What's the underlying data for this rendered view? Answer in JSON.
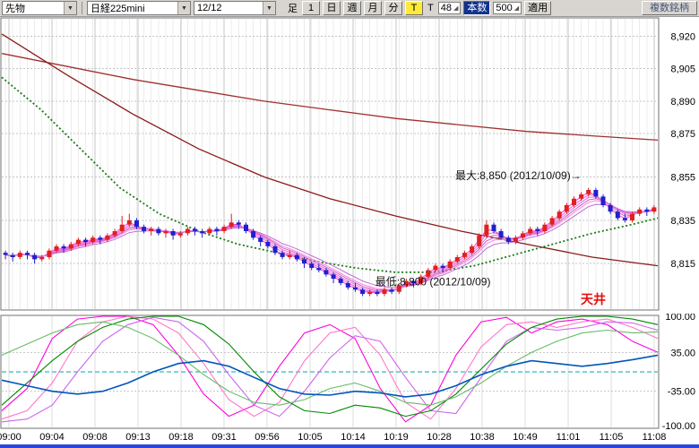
{
  "toolbar": {
    "market_select": "先物",
    "symbol_select": "日経225mini",
    "date_select": "12/12",
    "bar_label": "足",
    "interval_buttons": [
      "1",
      "日",
      "週",
      "月",
      "分"
    ],
    "tick_button": "T",
    "tick_label": "T",
    "tick_count": "48",
    "bars_button": "本数",
    "bars_count": "500",
    "apply_button": "適用",
    "multi_symbol_button": "複数銘柄"
  },
  "colors": {
    "up": "#e02020",
    "down": "#2020cc",
    "grid": "#ececec",
    "tick_grid": "#c6c6c6",
    "price_grid": "#c4c4c4",
    "border": "#707070",
    "bottom_bar": "#2b46e0",
    "ceiling": "#e81010",
    "annotation": "#111111"
  },
  "chart_data": {
    "type": "candlestick",
    "price_axis": {
      "labels": [
        "8,920",
        "8,905",
        "8,890",
        "8,875",
        "8,855",
        "8,835",
        "8,815"
      ],
      "values": [
        8920,
        8905,
        8890,
        8875,
        8855,
        8835,
        8815
      ],
      "min": 8794,
      "max": 8928
    },
    "time_axis": {
      "labels": [
        "09:00",
        "09:04",
        "09:08",
        "09:13",
        "09:18",
        "09:31",
        "09:56",
        "10:05",
        "10:14",
        "10:19",
        "10:28",
        "10:38",
        "10:49",
        "11:01",
        "11:05",
        "11:08"
      ]
    },
    "annotations": {
      "max_label": "最大:8,850 (2012/10/09)→",
      "min_label": "最低:8,800 (2012/10/09)",
      "ceiling_label": "天井"
    },
    "candles": [
      [
        8820,
        8821,
        8817,
        8819
      ],
      [
        8819,
        8820,
        8816,
        8818
      ],
      [
        8818,
        8821,
        8817,
        8820
      ],
      [
        8820,
        8821,
        8817,
        8819
      ],
      [
        8819,
        8820,
        8815,
        8817
      ],
      [
        8817,
        8819,
        8816,
        8818
      ],
      [
        8818,
        8822,
        8817,
        8821
      ],
      [
        8821,
        8824,
        8820,
        8823
      ],
      [
        8823,
        8824,
        8820,
        8822
      ],
      [
        8822,
        8825,
        8821,
        8824
      ],
      [
        8824,
        8827,
        8823,
        8826
      ],
      [
        8826,
        8827,
        8823,
        8825
      ],
      [
        8825,
        8828,
        8824,
        8827
      ],
      [
        8827,
        8828,
        8824,
        8826
      ],
      [
        8826,
        8829,
        8825,
        8828
      ],
      [
        8828,
        8831,
        8827,
        8830
      ],
      [
        8830,
        8837,
        8829,
        8833
      ],
      [
        8833,
        8838,
        8832,
        8835
      ],
      [
        8835,
        8836,
        8831,
        8832
      ],
      [
        8832,
        8833,
        8829,
        8830
      ],
      [
        8830,
        8832,
        8828,
        8831
      ],
      [
        8831,
        8832,
        8828,
        8829
      ],
      [
        8829,
        8831,
        8827,
        8830
      ],
      [
        8830,
        8831,
        8826,
        8828
      ],
      [
        8828,
        8830,
        8827,
        8829
      ],
      [
        8829,
        8832,
        8828,
        8831
      ],
      [
        8831,
        8832,
        8828,
        8830
      ],
      [
        8830,
        8831,
        8827,
        8829
      ],
      [
        8829,
        8832,
        8828,
        8831
      ],
      [
        8831,
        8832,
        8828,
        8830
      ],
      [
        8830,
        8833,
        8829,
        8832
      ],
      [
        8832,
        8838,
        8831,
        8834
      ],
      [
        8834,
        8835,
        8831,
        8833
      ],
      [
        8833,
        8834,
        8829,
        8830
      ],
      [
        8830,
        8831,
        8826,
        8827
      ],
      [
        8827,
        8828,
        8823,
        8825
      ],
      [
        8825,
        8826,
        8822,
        8823
      ],
      [
        8823,
        8824,
        8819,
        8820
      ],
      [
        8820,
        8821,
        8817,
        8818
      ],
      [
        8818,
        8821,
        8817,
        8819
      ],
      [
        8819,
        8820,
        8816,
        8817
      ],
      [
        8817,
        8818,
        8813,
        8815
      ],
      [
        8815,
        8816,
        8812,
        8813
      ],
      [
        8813,
        8815,
        8811,
        8812
      ],
      [
        8812,
        8813,
        8809,
        8810
      ],
      [
        8810,
        8811,
        8806,
        8808
      ],
      [
        8808,
        8809,
        8805,
        8806
      ],
      [
        8806,
        8807,
        8803,
        8804
      ],
      [
        8804,
        8806,
        8802,
        8803
      ],
      [
        8803,
        8804,
        8800,
        8801
      ],
      [
        8801,
        8803,
        8800,
        8802
      ],
      [
        8802,
        8803,
        8800,
        8801
      ],
      [
        8801,
        8804,
        8800,
        8803
      ],
      [
        8803,
        8804,
        8801,
        8802
      ],
      [
        8802,
        8806,
        8801,
        8805
      ],
      [
        8805,
        8808,
        8804,
        8807
      ],
      [
        8807,
        8808,
        8804,
        8806
      ],
      [
        8806,
        8810,
        8805,
        8809
      ],
      [
        8809,
        8813,
        8808,
        8812
      ],
      [
        8812,
        8815,
        8811,
        8814
      ],
      [
        8814,
        8815,
        8811,
        8813
      ],
      [
        8813,
        8817,
        8812,
        8816
      ],
      [
        8816,
        8819,
        8815,
        8818
      ],
      [
        8818,
        8821,
        8817,
        8820
      ],
      [
        8820,
        8824,
        8819,
        8823
      ],
      [
        8823,
        8829,
        8822,
        8828
      ],
      [
        8828,
        8835,
        8827,
        8833
      ],
      [
        8833,
        8834,
        8829,
        8830
      ],
      [
        8830,
        8831,
        8826,
        8827
      ],
      [
        8827,
        8828,
        8824,
        8825
      ],
      [
        8825,
        8828,
        8824,
        8827
      ],
      [
        8827,
        8830,
        8826,
        8829
      ],
      [
        8829,
        8832,
        8828,
        8831
      ],
      [
        8831,
        8832,
        8828,
        8830
      ],
      [
        8830,
        8834,
        8829,
        8833
      ],
      [
        8833,
        8837,
        8832,
        8836
      ],
      [
        8836,
        8840,
        8835,
        8839
      ],
      [
        8839,
        8843,
        8838,
        8842
      ],
      [
        8842,
        8846,
        8841,
        8845
      ],
      [
        8845,
        8848,
        8844,
        8847
      ],
      [
        8847,
        8850,
        8846,
        8849
      ],
      [
        8849,
        8850,
        8845,
        8846
      ],
      [
        8846,
        8847,
        8841,
        8842
      ],
      [
        8842,
        8843,
        8838,
        8839
      ],
      [
        8839,
        8840,
        8835,
        8836
      ],
      [
        8836,
        8838,
        8834,
        8835
      ],
      [
        8835,
        8839,
        8834,
        8838
      ],
      [
        8838,
        8841,
        8837,
        8840
      ],
      [
        8840,
        8841,
        8837,
        8839
      ],
      [
        8839,
        8842,
        8838,
        8841
      ]
    ],
    "overlays": {
      "ma_red_flat": {
        "color": "#a03030",
        "points": [
          [
            0,
            8912
          ],
          [
            0.1,
            8906
          ],
          [
            0.2,
            8900
          ],
          [
            0.3,
            8895
          ],
          [
            0.4,
            8890
          ],
          [
            0.5,
            8886
          ],
          [
            0.6,
            8882
          ],
          [
            0.7,
            8879
          ],
          [
            0.8,
            8876
          ],
          [
            0.9,
            8874
          ],
          [
            1,
            8872
          ]
        ]
      },
      "ma_red_steep": {
        "color": "#8b1a1a",
        "points": [
          [
            0,
            8921
          ],
          [
            0.1,
            8902
          ],
          [
            0.2,
            8884
          ],
          [
            0.3,
            8868
          ],
          [
            0.4,
            8855
          ],
          [
            0.5,
            8845
          ],
          [
            0.6,
            8837
          ],
          [
            0.7,
            8830
          ],
          [
            0.8,
            8824
          ],
          [
            0.9,
            8818
          ],
          [
            1,
            8814
          ]
        ]
      },
      "ma_green_dotted": {
        "color": "#1a7a1a",
        "points": [
          [
            0,
            8901
          ],
          [
            0.06,
            8886
          ],
          [
            0.12,
            8868
          ],
          [
            0.18,
            8850
          ],
          [
            0.24,
            8838
          ],
          [
            0.3,
            8830
          ],
          [
            0.36,
            8824
          ],
          [
            0.42,
            8820
          ],
          [
            0.48,
            8816
          ],
          [
            0.54,
            8813
          ],
          [
            0.6,
            8811
          ],
          [
            0.66,
            8811
          ],
          [
            0.72,
            8814
          ],
          [
            0.78,
            8819
          ],
          [
            0.84,
            8824
          ],
          [
            0.9,
            8829
          ],
          [
            0.96,
            8833
          ],
          [
            1,
            8836
          ]
        ]
      },
      "band": {
        "periods": [
          2,
          3,
          4,
          5,
          6,
          8
        ],
        "colors": [
          "#ff3fd8",
          "#f060d0",
          "#e070e0",
          "#d05fc0",
          "#ff80e0",
          "#c070d8"
        ]
      }
    },
    "indicator": {
      "axis_labels": [
        "100.00",
        "35.00",
        "-35.00",
        "-100.00"
      ],
      "axis_values": [
        100,
        35,
        -35,
        -100
      ],
      "gridline_values": [
        35,
        -35
      ],
      "zero_line_color": "#00aaaa",
      "range": [
        -100,
        100
      ],
      "series": [
        {
          "name": "rci-short",
          "color": "#ff00dd",
          "values": [
            -70,
            -30,
            60,
            95,
            100,
            100,
            85,
            30,
            -40,
            -80,
            -60,
            10,
            70,
            85,
            60,
            -30,
            -90,
            -60,
            30,
            90,
            98,
            70,
            90,
            95,
            85,
            55,
            35
          ]
        },
        {
          "name": "rci-short2",
          "color": "#ff77cc",
          "values": [
            -85,
            -70,
            -20,
            55,
            90,
            100,
            95,
            70,
            15,
            -50,
            -80,
            -55,
            20,
            70,
            80,
            30,
            -55,
            -85,
            -30,
            45,
            85,
            90,
            80,
            90,
            95,
            80,
            60
          ]
        },
        {
          "name": "rci-mid",
          "color": "#cc66ee",
          "values": [
            -90,
            -85,
            -60,
            0,
            55,
            85,
            98,
            90,
            55,
            -5,
            -60,
            -80,
            -35,
            25,
            65,
            55,
            -10,
            -70,
            -75,
            -10,
            55,
            80,
            75,
            80,
            90,
            88,
            75
          ]
        },
        {
          "name": "rci-long",
          "color": "#008800",
          "values": [
            -60,
            -20,
            20,
            55,
            80,
            95,
            100,
            100,
            85,
            50,
            0,
            -45,
            -70,
            -75,
            -60,
            -65,
            -80,
            -70,
            -40,
            5,
            50,
            80,
            95,
            100,
            100,
            95,
            85
          ]
        },
        {
          "name": "rci-long2",
          "color": "#66bb66",
          "values": [
            30,
            50,
            70,
            85,
            90,
            80,
            60,
            30,
            -5,
            -35,
            -55,
            -60,
            -50,
            -30,
            -20,
            -35,
            -55,
            -60,
            -45,
            -20,
            10,
            35,
            55,
            70,
            75,
            70,
            72
          ]
        },
        {
          "name": "signal",
          "color": "#0055bb",
          "values": [
            -15,
            -25,
            -35,
            -40,
            -35,
            -20,
            0,
            15,
            20,
            10,
            -10,
            -30,
            -40,
            -42,
            -35,
            -38,
            -45,
            -40,
            -25,
            -5,
            10,
            20,
            15,
            10,
            15,
            22,
            30
          ]
        }
      ]
    }
  }
}
